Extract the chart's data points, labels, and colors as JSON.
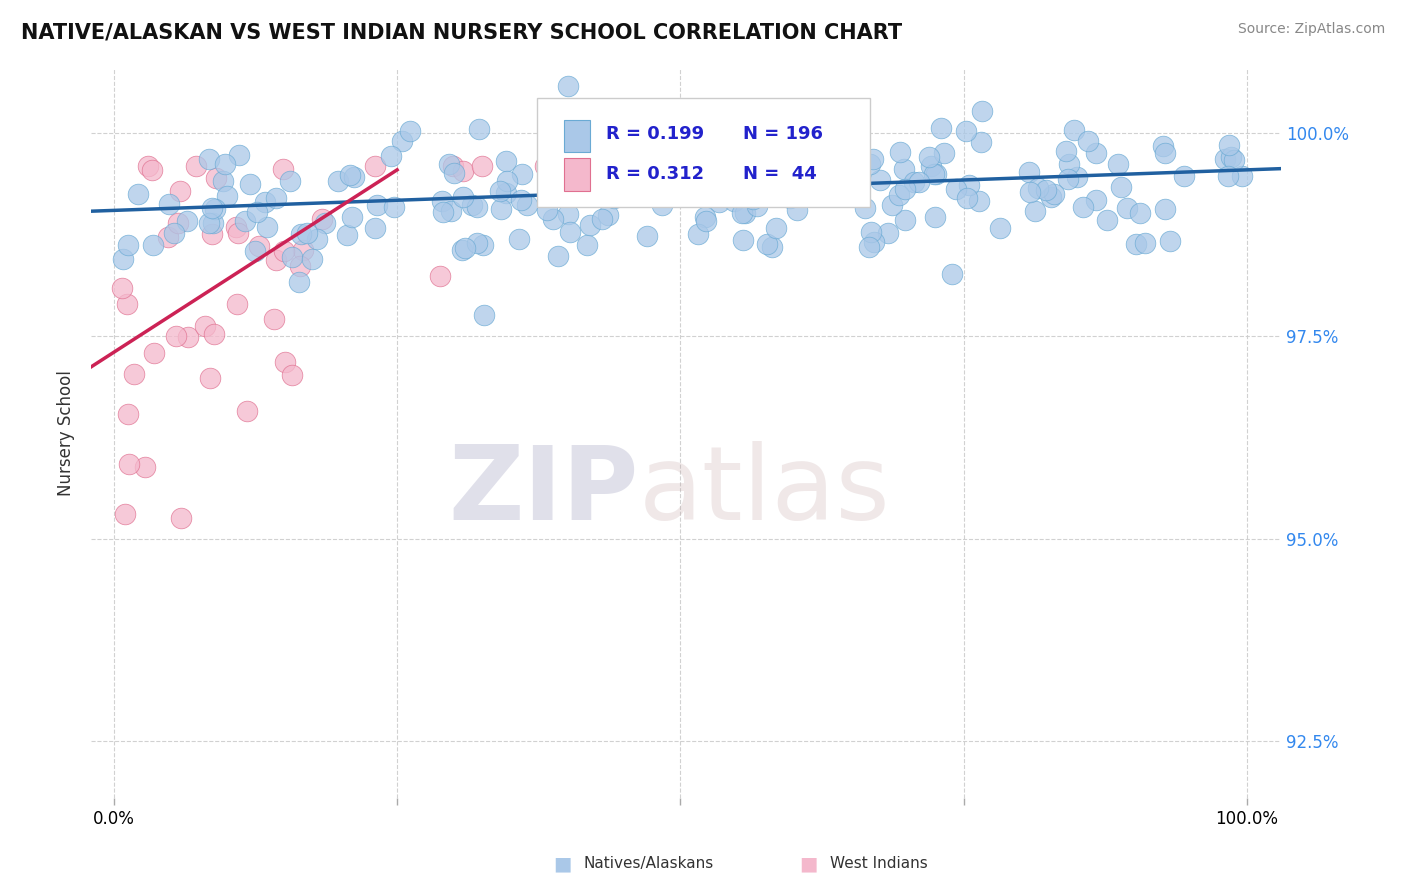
{
  "title": "NATIVE/ALASKAN VS WEST INDIAN NURSERY SCHOOL CORRELATION CHART",
  "source": "Source: ZipAtlas.com",
  "ylabel": "Nursery School",
  "legend_label_blue": "Natives/Alaskans",
  "legend_label_pink": "West Indians",
  "blue_color": "#aac8e8",
  "blue_edge_color": "#6aaad4",
  "pink_color": "#f4b8cc",
  "pink_edge_color": "#e07090",
  "blue_line_color": "#2060a0",
  "pink_line_color": "#cc2255",
  "legend_r_color": "#2222cc",
  "ylim_min": 91.8,
  "ylim_max": 100.8,
  "xlim_min": -2.0,
  "xlim_max": 103.0
}
